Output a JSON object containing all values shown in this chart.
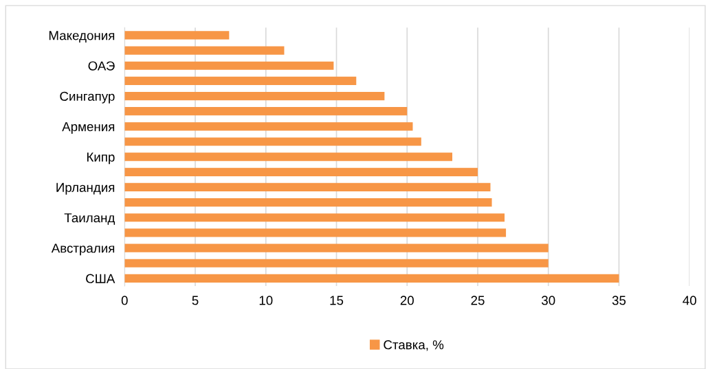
{
  "chart_data": {
    "type": "bar",
    "orientation": "horizontal",
    "categories": [
      "Македония",
      null,
      "ОАЭ",
      null,
      "Сингапур",
      null,
      "Армения",
      null,
      "Кипр",
      null,
      "Ирландия",
      null,
      "Таиланд",
      null,
      "Австралия",
      null,
      "США"
    ],
    "series": [
      {
        "name": "Ставка, %",
        "color": "#f79646",
        "values": [
          7.4,
          11.3,
          14.8,
          16.4,
          18.4,
          20.0,
          20.4,
          21.0,
          23.2,
          25.0,
          25.9,
          26.0,
          26.9,
          27.0,
          30,
          30,
          35
        ]
      }
    ],
    "xlim": [
      0,
      40
    ],
    "xticks": [
      0,
      5,
      10,
      15,
      20,
      25,
      30,
      35,
      40
    ],
    "grid": "x",
    "legend": "bottom"
  }
}
